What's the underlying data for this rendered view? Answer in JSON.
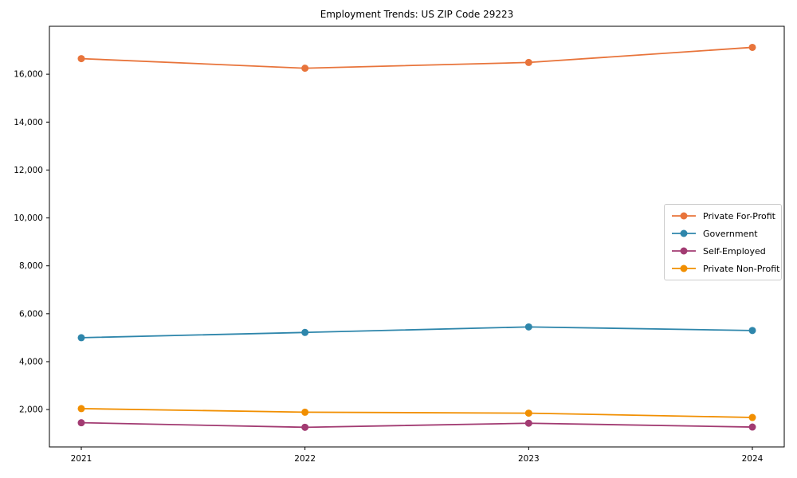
{
  "figure": {
    "title": "Employment Trends: US ZIP Code 29223",
    "background_color": "#ffffff",
    "axis_color": "#000000"
  },
  "chart_data": {
    "type": "line",
    "title": "Employment Trends: US ZIP Code 29223",
    "xlabel": "",
    "ylabel": "",
    "categories": [
      "2021",
      "2022",
      "2023",
      "2024"
    ],
    "series": [
      {
        "name": "Private For-Profit",
        "color": "#E8743B",
        "values": [
          16650,
          16250,
          16490,
          17120
        ]
      },
      {
        "name": "Government",
        "color": "#2E86AB",
        "values": [
          5000,
          5220,
          5450,
          5300
        ]
      },
      {
        "name": "Self-Employed",
        "color": "#A23B72",
        "values": [
          1450,
          1260,
          1430,
          1270
        ]
      },
      {
        "name": "Private Non-Profit",
        "color": "#F18F01",
        "values": [
          2040,
          1890,
          1850,
          1670
        ]
      }
    ],
    "ylim": [
      440,
      18000
    ],
    "y_ticks": [
      2000,
      4000,
      6000,
      8000,
      10000,
      12000,
      14000,
      16000
    ],
    "y_tick_labels": [
      "2,000",
      "4,000",
      "6,000",
      "8,000",
      "10,000",
      "12,000",
      "14,000",
      "16,000"
    ],
    "grid": false,
    "marker": "circle",
    "legend_position": "center-right"
  }
}
